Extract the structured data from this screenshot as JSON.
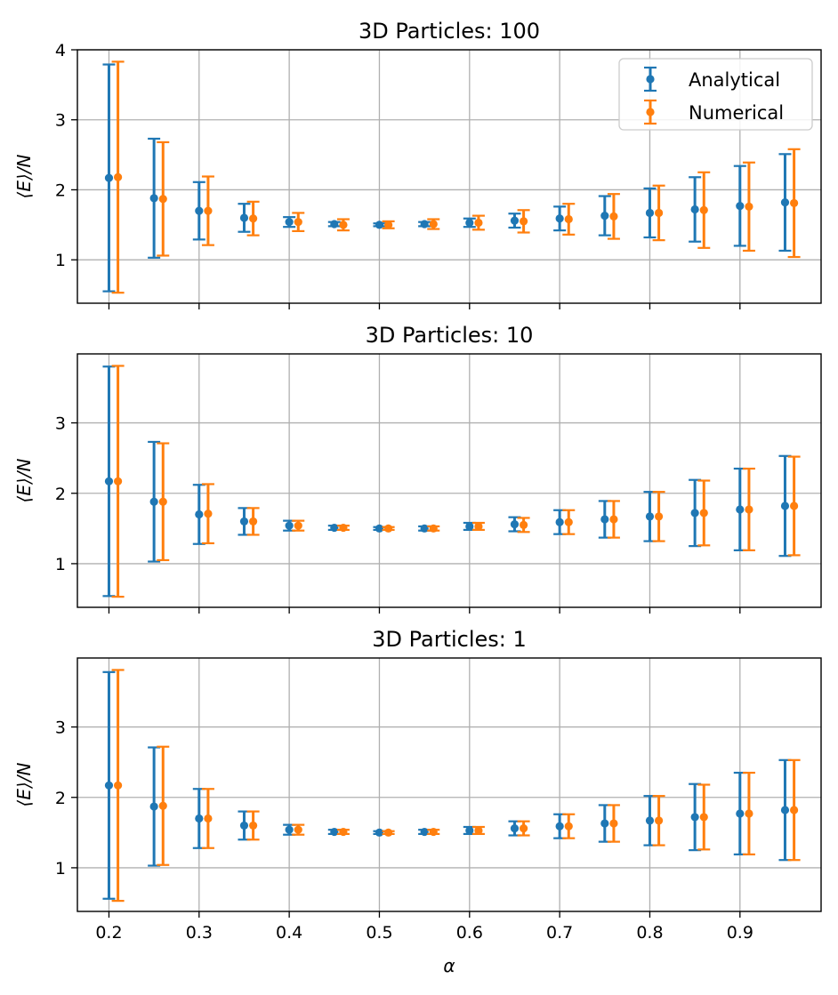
{
  "colors": {
    "analytical": "#1f77b4",
    "numerical": "#ff7f0e",
    "grid": "#b0b0b0"
  },
  "chart_data": [
    {
      "type": "errorbar",
      "title": "3D Particles: 100",
      "xlabel": "",
      "ylabel": "⟨E⟩/N",
      "xlim": [
        0.165,
        0.99
      ],
      "ylim": [
        0.38,
        4.0
      ],
      "xticks": [
        0.2,
        0.3,
        0.4,
        0.5,
        0.6,
        0.7,
        0.8,
        0.9
      ],
      "xtick_labels_visible": false,
      "yticks": [
        1,
        2,
        3,
        4
      ],
      "grid": true,
      "legend": "top-right",
      "series": [
        {
          "name": "Analytical",
          "color_key": "analytical",
          "x": [
            0.2,
            0.25,
            0.3,
            0.35,
            0.4,
            0.45,
            0.5,
            0.55,
            0.6,
            0.65,
            0.7,
            0.75,
            0.8,
            0.85,
            0.9,
            0.95
          ],
          "y": [
            2.17,
            1.88,
            1.7,
            1.6,
            1.54,
            1.51,
            1.5,
            1.51,
            1.53,
            1.56,
            1.59,
            1.63,
            1.67,
            1.72,
            1.77,
            1.82
          ],
          "err": [
            1.62,
            0.85,
            0.41,
            0.2,
            0.07,
            0.03,
            0.02,
            0.03,
            0.06,
            0.1,
            0.17,
            0.28,
            0.35,
            0.46,
            0.57,
            0.69
          ]
        },
        {
          "name": "Numerical",
          "color_key": "numerical",
          "x": [
            0.21,
            0.26,
            0.31,
            0.36,
            0.41,
            0.46,
            0.51,
            0.56,
            0.61,
            0.66,
            0.71,
            0.76,
            0.81,
            0.86,
            0.91,
            0.96
          ],
          "y": [
            2.18,
            1.87,
            1.7,
            1.59,
            1.54,
            1.5,
            1.5,
            1.51,
            1.53,
            1.55,
            1.58,
            1.62,
            1.67,
            1.71,
            1.76,
            1.81
          ],
          "err": [
            1.65,
            0.81,
            0.49,
            0.24,
            0.13,
            0.08,
            0.05,
            0.07,
            0.1,
            0.16,
            0.22,
            0.32,
            0.39,
            0.54,
            0.63,
            0.77
          ]
        }
      ]
    },
    {
      "type": "errorbar",
      "title": "3D Particles: 10",
      "xlabel": "",
      "ylabel": "⟨E⟩/N",
      "xlim": [
        0.165,
        0.99
      ],
      "ylim": [
        0.38,
        3.98
      ],
      "xticks": [
        0.2,
        0.3,
        0.4,
        0.5,
        0.6,
        0.7,
        0.8,
        0.9
      ],
      "xtick_labels_visible": false,
      "yticks": [
        1,
        2,
        3
      ],
      "grid": true,
      "series": [
        {
          "name": "Analytical",
          "color_key": "analytical",
          "x": [
            0.2,
            0.25,
            0.3,
            0.35,
            0.4,
            0.45,
            0.5,
            0.55,
            0.6,
            0.65,
            0.7,
            0.75,
            0.8,
            0.85,
            0.9,
            0.95
          ],
          "y": [
            2.17,
            1.88,
            1.7,
            1.6,
            1.54,
            1.51,
            1.5,
            1.5,
            1.53,
            1.56,
            1.59,
            1.63,
            1.67,
            1.72,
            1.77,
            1.82
          ],
          "err": [
            1.63,
            0.85,
            0.42,
            0.19,
            0.07,
            0.03,
            0.02,
            0.03,
            0.05,
            0.1,
            0.17,
            0.26,
            0.35,
            0.47,
            0.58,
            0.71
          ]
        },
        {
          "name": "Numerical",
          "color_key": "numerical",
          "x": [
            0.21,
            0.26,
            0.31,
            0.36,
            0.41,
            0.46,
            0.51,
            0.56,
            0.61,
            0.66,
            0.71,
            0.76,
            0.81,
            0.86,
            0.91,
            0.96
          ],
          "y": [
            2.17,
            1.88,
            1.71,
            1.6,
            1.54,
            1.51,
            1.5,
            1.5,
            1.53,
            1.55,
            1.59,
            1.63,
            1.67,
            1.72,
            1.77,
            1.82
          ],
          "err": [
            1.64,
            0.83,
            0.42,
            0.19,
            0.07,
            0.03,
            0.02,
            0.03,
            0.05,
            0.1,
            0.17,
            0.26,
            0.35,
            0.46,
            0.58,
            0.7
          ]
        }
      ]
    },
    {
      "type": "errorbar",
      "title": "3D Particles: 1",
      "xlabel": "α",
      "ylabel": "⟨E⟩/N",
      "xlim": [
        0.165,
        0.99
      ],
      "ylim": [
        0.38,
        3.98
      ],
      "xticks": [
        0.2,
        0.3,
        0.4,
        0.5,
        0.6,
        0.7,
        0.8,
        0.9
      ],
      "xtick_labels_visible": true,
      "yticks": [
        1,
        2,
        3
      ],
      "grid": true,
      "series": [
        {
          "name": "Analytical",
          "color_key": "analytical",
          "x": [
            0.2,
            0.25,
            0.3,
            0.35,
            0.4,
            0.45,
            0.5,
            0.55,
            0.6,
            0.65,
            0.7,
            0.75,
            0.8,
            0.85,
            0.9,
            0.95
          ],
          "y": [
            2.17,
            1.87,
            1.7,
            1.6,
            1.54,
            1.51,
            1.5,
            1.51,
            1.53,
            1.56,
            1.59,
            1.63,
            1.67,
            1.72,
            1.77,
            1.82
          ],
          "err": [
            1.61,
            0.84,
            0.42,
            0.2,
            0.07,
            0.03,
            0.02,
            0.03,
            0.05,
            0.1,
            0.17,
            0.26,
            0.35,
            0.47,
            0.58,
            0.71
          ]
        },
        {
          "name": "Numerical",
          "color_key": "numerical",
          "x": [
            0.21,
            0.26,
            0.31,
            0.36,
            0.41,
            0.46,
            0.51,
            0.56,
            0.61,
            0.66,
            0.71,
            0.76,
            0.81,
            0.86,
            0.91,
            0.96
          ],
          "y": [
            2.17,
            1.88,
            1.7,
            1.6,
            1.54,
            1.51,
            1.5,
            1.51,
            1.53,
            1.56,
            1.59,
            1.63,
            1.67,
            1.72,
            1.77,
            1.82
          ],
          "err": [
            1.64,
            0.84,
            0.42,
            0.2,
            0.07,
            0.03,
            0.02,
            0.03,
            0.05,
            0.1,
            0.17,
            0.26,
            0.35,
            0.46,
            0.58,
            0.71
          ]
        }
      ]
    }
  ]
}
